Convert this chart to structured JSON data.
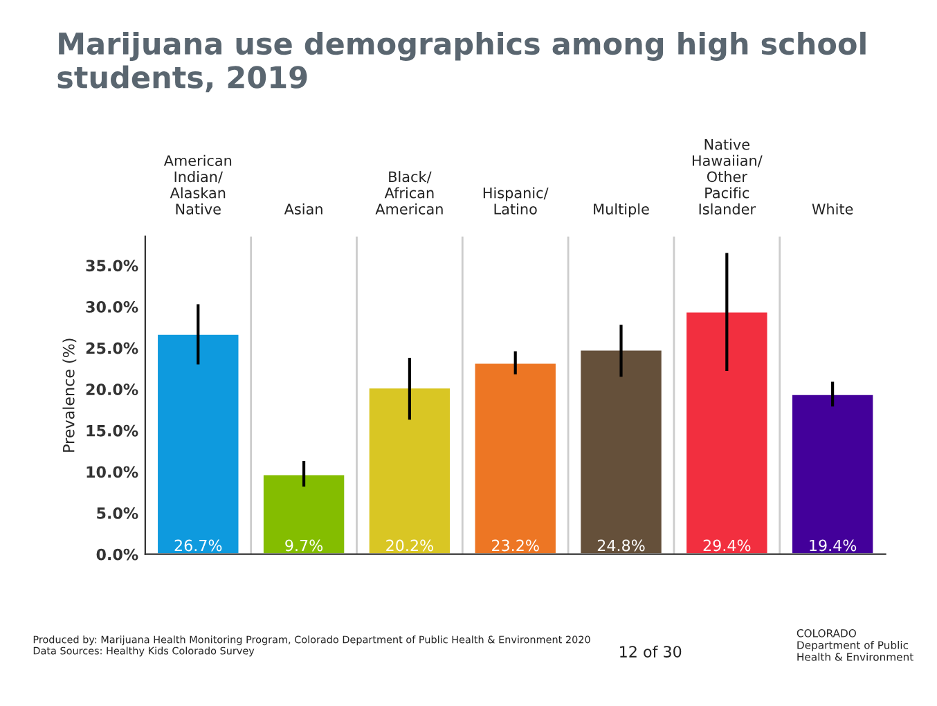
{
  "chart_data": {
    "type": "bar",
    "title": "Marijuana use demographics among high school\nstudents, 2019",
    "ylabel": "Prevalence (%)",
    "categories": [
      "American\nIndian/\nAlaskan\nNative",
      "Asian",
      "Black/\nAfrican\nAmerican",
      "Hispanic/\nLatino",
      "Multiple",
      "Native\nHawaiian/\nOther\nPacific\nIslander",
      "White"
    ],
    "values": [
      26.7,
      9.7,
      20.2,
      23.2,
      24.8,
      29.4,
      19.4
    ],
    "colors": [
      "#0e9ade",
      "#84bd00",
      "#d9c624",
      "#ed7624",
      "#65503a",
      "#f22f3f",
      "#43009a"
    ],
    "errors": [
      [
        23.0,
        30.3
      ],
      [
        8.2,
        11.3
      ],
      [
        16.3,
        23.8
      ],
      [
        21.8,
        24.6
      ],
      [
        21.5,
        27.8
      ],
      [
        22.2,
        36.5
      ],
      [
        17.9,
        20.9
      ]
    ],
    "value_labels": [
      "26.7%",
      "9.7%",
      "20.2%",
      "23.2%",
      "24.8%",
      "29.4%",
      "19.4%"
    ],
    "ylim": [
      0,
      38.5
    ],
    "yticks": [
      {
        "value": 0,
        "label": "0.0%"
      },
      {
        "value": 5,
        "label": "5.0%"
      },
      {
        "value": 10,
        "label": "10.0%"
      },
      {
        "value": 15,
        "label": "15.0%"
      },
      {
        "value": 20,
        "label": "20.0%"
      },
      {
        "value": 25,
        "label": "25.0%"
      },
      {
        "value": 30,
        "label": "30.0%"
      },
      {
        "value": 35,
        "label": "35.0%"
      }
    ],
    "grid": "x",
    "annotations": [
      "Produced by: Marijuana Health Monitoring Program, Colorado Department of Public Health & Environment 2020\nData Sources: Healthy Kids Colorado Survey",
      "12 of 30",
      "COLORADO\nDepartment of Public\nHealth & Environment"
    ]
  }
}
